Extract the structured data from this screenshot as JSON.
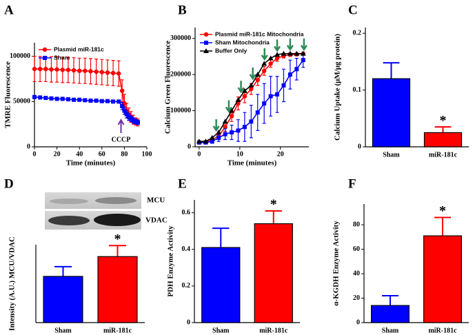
{
  "chart_data": [
    {
      "type": "line",
      "panel_label": "A",
      "xlabel": "Time (minutes)",
      "ylabel": "TMRE Fluorescence",
      "x": [
        0,
        5,
        10,
        15,
        20,
        25,
        30,
        35,
        40,
        45,
        50,
        55,
        60,
        65,
        70,
        75,
        78,
        80,
        82,
        84,
        86,
        88,
        90,
        92
      ],
      "series": [
        {
          "name": "Plasmid miR-181c",
          "color": "#ff0000",
          "marker": "circle",
          "values": [
            86000,
            86000,
            86000,
            85500,
            85500,
            85000,
            85000,
            84500,
            84000,
            84000,
            83500,
            83000,
            82500,
            82000,
            81500,
            81000,
            62000,
            48000,
            40000,
            36000,
            33000,
            30000,
            28000,
            27000
          ],
          "errors": [
            14000,
            14000,
            14000,
            14000,
            14000,
            14000,
            14000,
            14000,
            14000,
            14000,
            14000,
            14000,
            14000,
            14000,
            14000,
            14000,
            12000,
            10000,
            8000,
            7000,
            6000,
            5000,
            4000,
            4000
          ]
        },
        {
          "name": "Sham",
          "color": "#0000ff",
          "marker": "square",
          "values": [
            55000,
            54500,
            54000,
            53500,
            53000,
            53000,
            52500,
            52000,
            52000,
            51500,
            51000,
            51000,
            50500,
            50500,
            50000,
            50000,
            45000,
            40000,
            36000,
            33000,
            31000,
            29000,
            28000,
            27000
          ],
          "errors": [
            1500,
            1500,
            1500,
            1500,
            1500,
            1500,
            1500,
            1500,
            1500,
            1500,
            1500,
            1500,
            1500,
            1500,
            1500,
            1500,
            4000,
            4000,
            4000,
            3500,
            3000,
            3000,
            2500,
            2500
          ]
        }
      ],
      "xlim": [
        0,
        100
      ],
      "xticks": [
        0,
        20,
        40,
        60,
        80,
        100
      ],
      "ylim": [
        0,
        115000
      ],
      "yticks": [
        0,
        50000,
        100000
      ],
      "legend": "upper left",
      "annotation": {
        "text": "CCCP",
        "x": 77,
        "color": "#7030a0"
      }
    },
    {
      "type": "line",
      "panel_label": "B",
      "xlabel": "Time (minutes)",
      "ylabel": "Calcium Green Fluorescence",
      "x": [
        0,
        1.6,
        3.2,
        4.8,
        6.4,
        8,
        9.6,
        11.2,
        12.8,
        14.4,
        16,
        17.6,
        19.2,
        20.8,
        22.4,
        24,
        25.6
      ],
      "series": [
        {
          "name": "Plasmid miR-181c Mitochondria",
          "color": "#ff0000",
          "marker": "circle",
          "values": [
            12000,
            13000,
            20000,
            30000,
            55000,
            85000,
            120000,
            140000,
            160000,
            185000,
            210000,
            230000,
            245000,
            252000,
            255000,
            256000,
            258000
          ],
          "errors": [
            3000,
            3000,
            5000,
            8000,
            12000,
            15000,
            18000,
            18000,
            15000,
            15000,
            12000,
            10000,
            8000,
            6000,
            5000,
            4000,
            3000
          ]
        },
        {
          "name": "Sham Mitochondria",
          "color": "#0000ff",
          "marker": "square",
          "values": [
            12000,
            12000,
            15000,
            25000,
            35000,
            40000,
            45000,
            55000,
            70000,
            95000,
            120000,
            140000,
            145000,
            170000,
            200000,
            215000,
            240000
          ],
          "errors": [
            3000,
            3000,
            5000,
            10000,
            15000,
            20000,
            30000,
            40000,
            45000,
            50000,
            55000,
            55000,
            50000,
            45000,
            40000,
            30000,
            20000
          ]
        },
        {
          "name": "Buffer Only",
          "color": "#000000",
          "marker": "triangle",
          "values": [
            15000,
            15000,
            25000,
            40000,
            70000,
            100000,
            130000,
            155000,
            170000,
            200000,
            230000,
            245000,
            255000,
            258000,
            258000,
            258000,
            258000
          ]
        }
      ],
      "xlim": [
        -1,
        27
      ],
      "xticks": [
        0,
        10,
        20
      ],
      "ylim": [
        0,
        330000
      ],
      "yticks": [
        0,
        100000,
        200000,
        300000
      ],
      "legend": "upper left",
      "arrows": {
        "x": [
          4.2,
          7.3,
          10.3,
          13.2,
          16.1,
          19.2,
          22.4,
          25.8
        ],
        "color": "#2e8b57"
      }
    },
    {
      "type": "bar",
      "panel_label": "C",
      "ylabel": "Calcium Uptake (μM/μg protein)",
      "categories": [
        "Sham",
        "miR-181c"
      ],
      "values": [
        0.12,
        0.025
      ],
      "errors": [
        0.028,
        0.01
      ],
      "colors": [
        "#0000ff",
        "#ff0000"
      ],
      "annotations": [
        null,
        "*"
      ],
      "ylim": [
        0,
        0.21
      ],
      "yticks": [
        0,
        0.1,
        0.2
      ]
    },
    {
      "type": "bar",
      "panel_label": "D",
      "ylabel": "Intensity (A.U.) MCU/VDAC",
      "categories": [
        "Sham",
        "miR-181c"
      ],
      "values": [
        1.05,
        1.5
      ],
      "errors": [
        0.22,
        0.25
      ],
      "colors": [
        "#0000ff",
        "#ff0000"
      ],
      "annotations": [
        null,
        "*"
      ],
      "ylim": [
        0,
        1.77
      ],
      "blot_labels": [
        "MCU",
        "VDAC"
      ]
    },
    {
      "type": "bar",
      "panel_label": "E",
      "ylabel": "PDH Enzyme Activity",
      "categories": [
        "Sham",
        "miR-181c"
      ],
      "values": [
        0.41,
        0.54
      ],
      "errors": [
        0.105,
        0.07
      ],
      "colors": [
        "#0000ff",
        "#ff0000"
      ],
      "annotations": [
        null,
        "*"
      ],
      "ylim": [
        0,
        0.67
      ],
      "yticks": [
        0,
        0.2,
        0.4,
        0.6
      ]
    },
    {
      "type": "bar",
      "panel_label": "F",
      "ylabel": "α-KGDH Enzyme Activity",
      "categories": [
        "Sham",
        "miR-181c"
      ],
      "values": [
        14,
        71
      ],
      "errors": [
        8,
        15
      ],
      "colors": [
        "#0000ff",
        "#ff0000"
      ],
      "annotations": [
        null,
        "*"
      ],
      "ylim": [
        0,
        97
      ],
      "yticks": [
        0,
        20,
        40,
        60,
        80
      ]
    }
  ]
}
